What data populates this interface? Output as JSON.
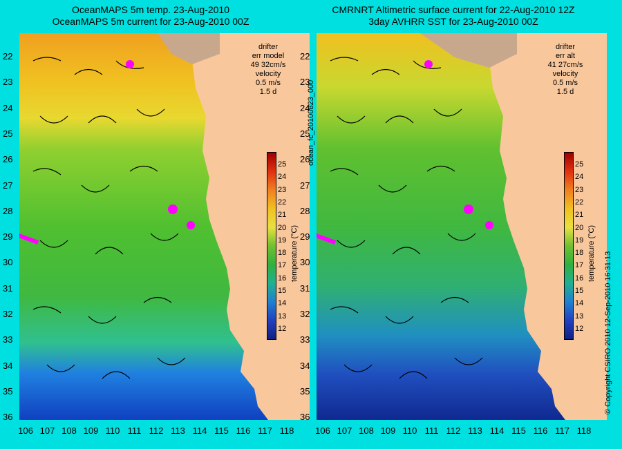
{
  "panels": [
    {
      "id": "left",
      "title_line1": "OceanMAPS 5m temp. 23-Aug-2010",
      "title_line2": "OceanMAPS 5m current for 23-Aug-2010 00Z",
      "legend": {
        "drifter": "drifter",
        "err_label": "err model",
        "err_value": "49 32cm/s",
        "velocity_label": "velocity",
        "velocity_value": "0.5 m/s",
        "duration": "1.5 d"
      },
      "colorbar_title": "temperature (°C)"
    },
    {
      "id": "right",
      "title_line1": "CMRNRT Altimetric surface current for 22-Aug-2010 12Z",
      "title_line2": "3day AVHRR SST for 23-Aug-2010 00Z",
      "legend": {
        "drifter": "drifter",
        "err_label": "err alt",
        "err_value": "41 27cm/s",
        "velocity_label": "velocity",
        "velocity_value": "0.5 m/s",
        "duration": "1.5 d"
      },
      "colorbar_title": "temperature (°C)"
    }
  ],
  "axes": {
    "lat_ticks": [
      "22",
      "23",
      "24",
      "25",
      "26",
      "27",
      "28",
      "29",
      "30",
      "31",
      "32",
      "33",
      "34",
      "35",
      "36"
    ],
    "lon_ticks": [
      "106",
      "107",
      "108",
      "109",
      "110",
      "111",
      "112",
      "113",
      "114",
      "115",
      "116",
      "117",
      "118"
    ]
  },
  "colorbar_ticks": [
    "25",
    "24",
    "23",
    "22",
    "21",
    "20",
    "19",
    "18",
    "17",
    "16",
    "15",
    "14",
    "13",
    "12"
  ],
  "side_label": "ocean_fc_20100823_000",
  "copyright": "© Copyright CSIRO 2010   12-Sep-2010 16:31:13",
  "colors": {
    "background": "#00e0e0",
    "land": "#f9c79c",
    "drifter": "#ff00ff"
  }
}
